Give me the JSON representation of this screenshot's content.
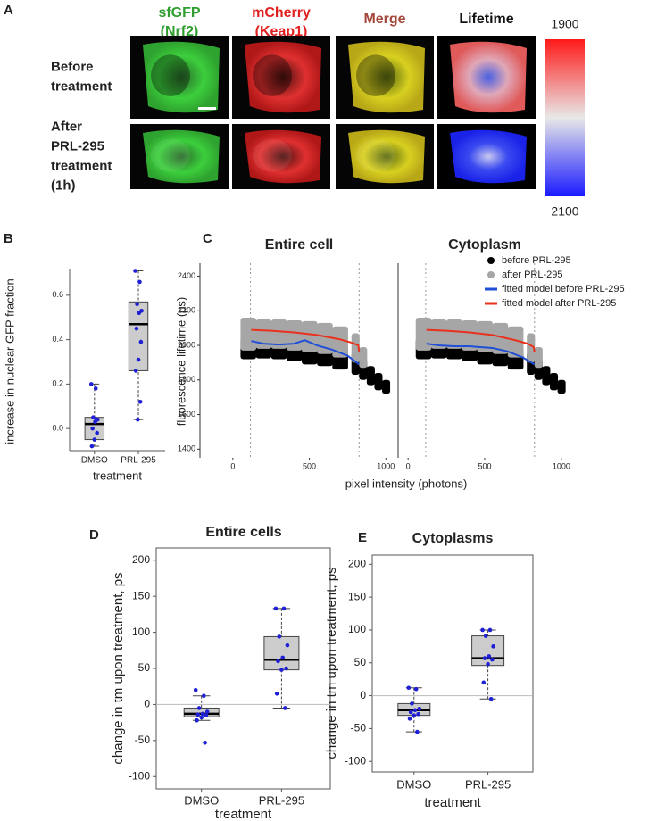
{
  "panel_a": {
    "label": "A",
    "columns": [
      {
        "lines": [
          "sfGFP",
          "(Nrf2)"
        ],
        "color": "#2f9e2f"
      },
      {
        "lines": [
          "mCherry",
          "(Keap1)"
        ],
        "color": "#e02020"
      },
      {
        "lines": [
          "Merge"
        ],
        "color": "#a4473b"
      },
      {
        "lines": [
          "Lifetime"
        ],
        "color": "#111111"
      }
    ],
    "rows": [
      [
        "Before",
        "treatment"
      ],
      [
        "After",
        "PRL-295",
        "treatment",
        "(1h)"
      ]
    ],
    "colorbar": {
      "ticks": [
        1900,
        2100
      ],
      "colors": [
        "#ff1a1a",
        "#e8e8e8",
        "#1a1aff"
      ]
    }
  },
  "chart_data": [
    {
      "type": "box",
      "label": "B",
      "ylabel": "increase in nuclear GFP fraction",
      "xlabel": "treatment",
      "categories": [
        "DMSO",
        "PRL-295"
      ],
      "ylim": [
        -0.1,
        0.72
      ],
      "yticks": [
        {
          "value": 0,
          "label": "0.0"
        },
        0.2,
        0.4,
        0.6
      ],
      "frame": false,
      "box_color": "#cccccc",
      "point_color": "#1f1fd6",
      "boxes": [
        {
          "low": -0.08,
          "q1": -0.05,
          "median": 0.02,
          "q3": 0.05,
          "high": 0.2
        },
        {
          "low": 0.04,
          "q1": 0.26,
          "median": 0.47,
          "q3": 0.57,
          "high": 0.71
        }
      ],
      "points": [
        [
          0.2,
          0.18,
          0.05,
          0.04,
          0.03,
          0.0,
          -0.02,
          -0.05,
          -0.08,
          0.04
        ],
        [
          0.71,
          0.66,
          0.56,
          0.53,
          0.52,
          0.45,
          0.39,
          0.31,
          0.26,
          0.12,
          0.04
        ]
      ]
    },
    {
      "type": "scatter",
      "label": "C",
      "ylabel": "fluorescence lifetime (ps)",
      "xlabel": "pixel intensity (photons)",
      "ylim": [
        1350,
        2475
      ],
      "yticks": [
        1400,
        1600,
        1800,
        2000,
        2200,
        2400
      ],
      "xticks": [
        0,
        500,
        1000
      ],
      "vlines": [
        115,
        825
      ],
      "legend": [
        {
          "name": "before PRL-295",
          "color": "#000000",
          "kind": "point"
        },
        {
          "name": "after PRL-295",
          "color": "#a6a6a6",
          "kind": "point"
        },
        {
          "name": "fitted model before PRL-295",
          "color": "#1f4fd6",
          "kind": "line"
        },
        {
          "name": "fitted model after PRL-295",
          "color": "#e8321e",
          "kind": "line"
        }
      ],
      "panels": [
        {
          "title": "Entire cell",
          "xlim": [
            -215,
            1080
          ],
          "clouds": [
            {
              "x": [
                100,
                200,
                300,
                400,
                500,
                600,
                700,
                800,
                850,
                900,
                950,
                1000
              ],
              "low": [
                1920,
                1925,
                1920,
                1910,
                1890,
                1880,
                1860,
                1830,
                1800,
                1770,
                1740,
                1720
              ],
              "high": [
                2040,
                2030,
                2020,
                2015,
                2010,
                2000,
                1990,
                1960,
                1920,
                1880,
                1840,
                1800
              ]
            },
            {
              "x": [
                100,
                200,
                300,
                400,
                500,
                600,
                700,
                800,
                850
              ],
              "low": [
                1970,
                1980,
                1980,
                1970,
                1960,
                1950,
                1930,
                1900,
                1870
              ],
              "high": [
                2160,
                2150,
                2150,
                2145,
                2140,
                2130,
                2110,
                2070,
                1990
              ]
            }
          ],
          "lines": [
            {
              "x": [
                120,
                200,
                300,
                400,
                470,
                550,
                650,
                750,
                825
              ],
              "y": [
                2025,
                2010,
                2005,
                2010,
                2030,
                2000,
                1975,
                1940,
                1890
              ]
            },
            {
              "x": [
                120,
                250,
                400,
                550,
                700,
                780,
                820,
                825
              ],
              "y": [
                2090,
                2085,
                2075,
                2060,
                2035,
                2015,
                2000,
                1965
              ]
            }
          ]
        },
        {
          "title": "Cytoplasm",
          "xlim": [
            -65,
            1065
          ],
          "clouds": [
            {
              "x": [
                100,
                200,
                300,
                400,
                500,
                600,
                700,
                800,
                850,
                900,
                950,
                1000
              ],
              "low": [
                1920,
                1925,
                1920,
                1910,
                1890,
                1880,
                1860,
                1830,
                1800,
                1770,
                1740,
                1720
              ],
              "high": [
                2040,
                2030,
                2020,
                2015,
                2010,
                2000,
                1990,
                1960,
                1920,
                1880,
                1840,
                1800
              ]
            },
            {
              "x": [
                100,
                200,
                300,
                400,
                500,
                600,
                700,
                800,
                850
              ],
              "low": [
                1970,
                1980,
                1980,
                1970,
                1960,
                1950,
                1930,
                1900,
                1870
              ],
              "high": [
                2160,
                2150,
                2150,
                2145,
                2140,
                2130,
                2110,
                2070,
                1990
              ]
            }
          ],
          "lines": [
            {
              "x": [
                120,
                200,
                300,
                400,
                470,
                550,
                650,
                750,
                825
              ],
              "y": [
                2010,
                2000,
                1995,
                1995,
                1990,
                1985,
                1965,
                1930,
                1890
              ]
            },
            {
              "x": [
                120,
                250,
                400,
                550,
                700,
                780,
                820,
                825
              ],
              "y": [
                2090,
                2085,
                2075,
                2060,
                2030,
                2010,
                1990,
                1960
              ]
            }
          ]
        }
      ]
    },
    {
      "type": "box",
      "label": "D",
      "title": "Entire cells",
      "ylabel": "change in tm upon treatment, ps",
      "xlabel": "treatment",
      "categories": [
        "DMSO",
        "PRL-295"
      ],
      "ylim": [
        -117,
        217
      ],
      "yticks": [
        -100,
        -50,
        0,
        50,
        100,
        150,
        200
      ],
      "frame": true,
      "hline": 0,
      "box_color": "#cccccc",
      "point_color": "#1f1fd6",
      "boxes": [
        {
          "low": -22,
          "q1": -17,
          "median": -13,
          "q3": -5,
          "high": 12
        },
        {
          "low": -5,
          "q1": 48,
          "median": 62,
          "q3": 94,
          "high": 133
        }
      ],
      "points": [
        [
          20,
          12,
          -5,
          -10,
          -13,
          -14,
          -15,
          -18,
          -22,
          -53
        ],
        [
          133,
          133,
          94,
          82,
          65,
          60,
          50,
          48,
          15,
          -5
        ]
      ]
    },
    {
      "type": "box",
      "label": "E",
      "title": "Cytoplasms",
      "ylabel": "change in tm upon treatment, ps",
      "xlabel": "treatment",
      "categories": [
        "DMSO",
        "PRL-295"
      ],
      "ylim": [
        -116,
        214
      ],
      "yticks": [
        -100,
        -50,
        0,
        50,
        100,
        150,
        200
      ],
      "frame": true,
      "hline": 0,
      "box_color": "#cccccc",
      "point_color": "#1f1fd6",
      "boxes": [
        {
          "low": -55,
          "q1": -30,
          "median": -22,
          "q3": -12,
          "high": 12
        },
        {
          "low": -5,
          "q1": 46,
          "median": 57,
          "q3": 91,
          "high": 100
        }
      ],
      "points": [
        [
          12,
          10,
          -12,
          -20,
          -22,
          -25,
          -28,
          -30,
          -35,
          -55
        ],
        [
          100,
          100,
          91,
          75,
          60,
          57,
          55,
          48,
          20,
          -5
        ]
      ]
    }
  ]
}
